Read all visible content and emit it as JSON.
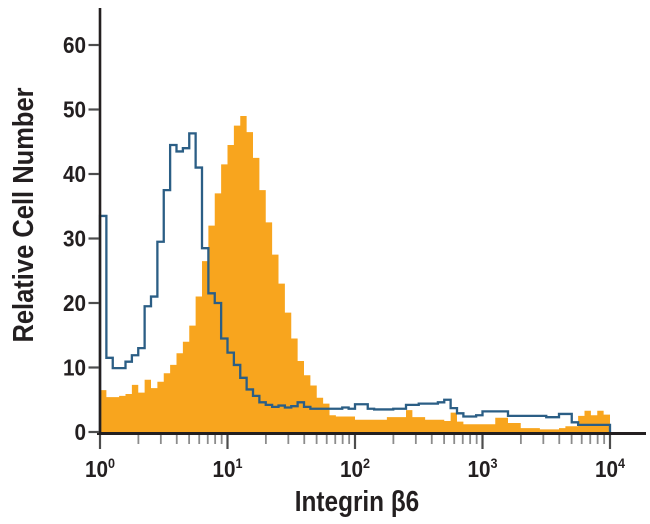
{
  "figure": {
    "background_color": "#ffffff",
    "text_color": "#231f20"
  },
  "chart_data": {
    "type": "histogram",
    "subtype": "flow-cytometry-overlay",
    "title": "",
    "xlabel": "Integrin β6",
    "ylabel": "Relative Cell Number",
    "x_scale": "log10",
    "x_range_log10": [
      0,
      4
    ],
    "ylim": [
      0,
      65
    ],
    "y_ticks": [
      0,
      10,
      20,
      30,
      40,
      50,
      60
    ],
    "x_tick_base": "10",
    "x_tick_exponents": [
      "0",
      "1",
      "2",
      "3",
      "4"
    ],
    "grid": false,
    "legend": "none",
    "bin_width_log10": 0.05,
    "series": [
      {
        "name": "orange-filled-histogram",
        "style": "filled",
        "color": "#F8A51E",
        "values": [
          6.5,
          5.4,
          5.4,
          5.6,
          5.9,
          7.3,
          6.1,
          8.1,
          6.8,
          7.8,
          9.1,
          10.4,
          12.2,
          14.0,
          16.5,
          21.0,
          26.5,
          32.0,
          37.0,
          41.5,
          44.5,
          47.5,
          49.0,
          46.5,
          42.5,
          37.5,
          32.5,
          27.5,
          23.0,
          18.5,
          14.5,
          11.0,
          8.8,
          7.2,
          5.3,
          4.4,
          2.6,
          2.4,
          2.4,
          2.4,
          1.9,
          1.9,
          1.9,
          1.9,
          1.9,
          2.3,
          2.3,
          2.3,
          3.4,
          2.3,
          2.3,
          1.9,
          1.9,
          1.9,
          1.7,
          3.0,
          1.6,
          1.2,
          1.2,
          1.2,
          1.2,
          1.2,
          2.2,
          2.2,
          1.4,
          1.4,
          0.6,
          0.6,
          0.6,
          0.4,
          0.4,
          0.4,
          0.6,
          0.9,
          0.9,
          2.5,
          3.3,
          2.6,
          3.3,
          2.7
        ]
      },
      {
        "name": "blue-outline-histogram",
        "style": "line",
        "color": "#2B5E85",
        "values": [
          33.5,
          11.5,
          9.9,
          9.9,
          10.9,
          11.9,
          13.0,
          19.5,
          21.0,
          29.5,
          37.5,
          44.5,
          43.5,
          44.0,
          46.3,
          41.0,
          28.5,
          21.5,
          20.0,
          14.5,
          12.3,
          10.4,
          8.4,
          6.6,
          5.6,
          4.6,
          4.2,
          3.9,
          4.1,
          3.8,
          4.0,
          4.6,
          3.9,
          3.6,
          3.6,
          3.6,
          3.6,
          3.6,
          3.8,
          3.6,
          4.3,
          4.3,
          3.6,
          3.5,
          3.5,
          3.5,
          3.6,
          3.6,
          4.2,
          4.2,
          4.4,
          4.4,
          4.4,
          4.6,
          5.0,
          3.7,
          2.9,
          2.4,
          2.4,
          2.6,
          3.2,
          3.2,
          3.2,
          3.2,
          2.5,
          2.5,
          2.5,
          2.5,
          2.5,
          2.5,
          2.3,
          2.3,
          2.8,
          2.8,
          1.5,
          1.1,
          1.1,
          1.1,
          1.1,
          1.1
        ]
      }
    ],
    "axis_color": "#231f20",
    "major_tick_color": "#4d4d4d",
    "minor_tick_color": "#8c8c8c"
  }
}
